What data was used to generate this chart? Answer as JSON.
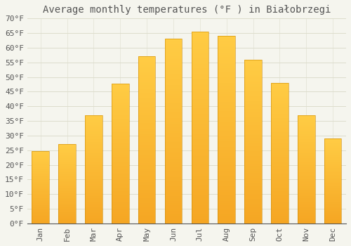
{
  "title": "Average monthly temperatures (°F ) in Białobrzegi",
  "months": [
    "Jan",
    "Feb",
    "Mar",
    "Apr",
    "May",
    "Jun",
    "Jul",
    "Aug",
    "Sep",
    "Oct",
    "Nov",
    "Dec"
  ],
  "values": [
    24.8,
    27.0,
    37.0,
    47.8,
    57.0,
    63.0,
    65.5,
    64.0,
    56.0,
    48.0,
    37.0,
    29.0
  ],
  "bar_color_top": "#FFCC44",
  "bar_color_bottom": "#F5A623",
  "bar_edge_color": "#CC8800",
  "background_color": "#F5F5EE",
  "grid_color": "#DDDDCC",
  "text_color": "#555555",
  "ylim": [
    0,
    70
  ],
  "ytick_step": 5,
  "title_fontsize": 10,
  "tick_fontsize": 8,
  "font_family": "monospace"
}
